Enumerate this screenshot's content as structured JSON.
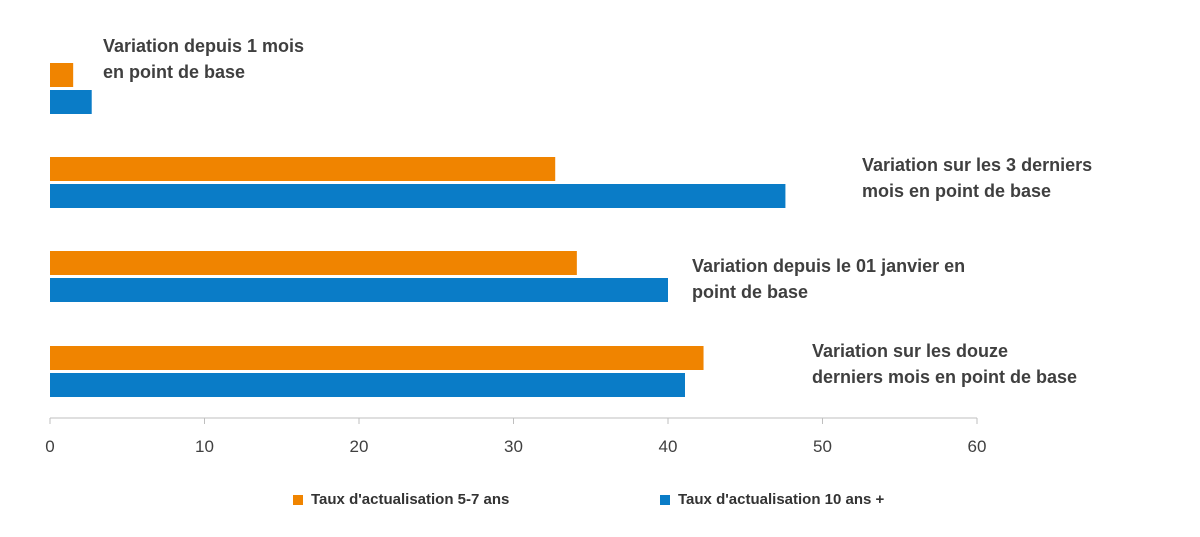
{
  "chart_data": {
    "type": "bar",
    "orientation": "horizontal",
    "categories": [
      [
        "Variation depuis 1 mois",
        "en point de base"
      ],
      [
        "Variation sur les 3 derniers",
        "mois en point de base"
      ],
      [
        "Variation depuis le 01 janvier en",
        "point de base"
      ],
      [
        "Variation sur les douze",
        "derniers mois en point de base"
      ]
    ],
    "series": [
      {
        "name": "Taux d'actualisation 5-7 ans",
        "color": "#f08400",
        "values": [
          1.5,
          32.7,
          34.1,
          42.3
        ]
      },
      {
        "name": "Taux d'actualisation 10 ans +",
        "color": "#0a7cc7",
        "values": [
          2.7,
          47.6,
          40.0,
          41.1
        ]
      }
    ],
    "xlim": [
      0,
      60
    ],
    "xticks": [
      "0",
      "10",
      "20",
      "30",
      "40",
      "50",
      "60"
    ],
    "grid": false,
    "legend_position": "bottom",
    "category_label_position": "right of bars"
  }
}
